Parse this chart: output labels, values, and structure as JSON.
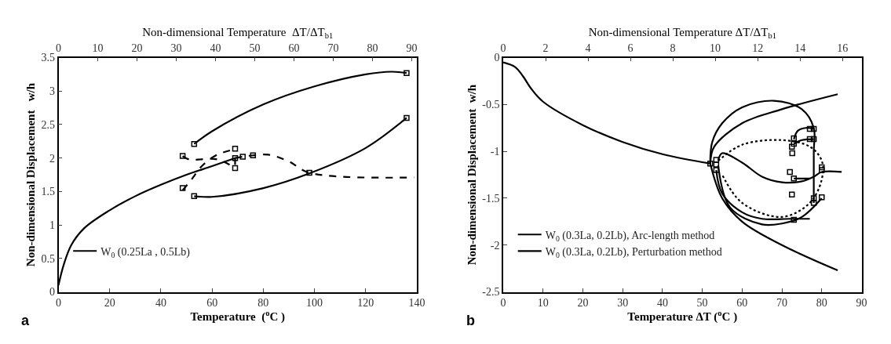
{
  "chart_data": [
    {
      "type": "line",
      "xlabel": "Temperature  ($^{o}$C )",
      "ylabel": "Non-dimensional Displacement   w/h",
      "x2label": "Non-dimensional Temperature  ΔT/ΔT$_{b1}$",
      "xlim": [
        0,
        140
      ],
      "xticks": [
        0,
        20,
        40,
        60,
        80,
        100,
        120,
        140
      ],
      "ylim": [
        0,
        3.5
      ],
      "yticks": [
        0,
        0.5,
        1,
        1.5,
        2,
        2.5,
        3,
        3.5
      ],
      "x2lim": [
        0,
        91.3
      ],
      "x2ticks": [
        0,
        10,
        20,
        30,
        40,
        50,
        60,
        70,
        80,
        90
      ],
      "legend": "bottom left",
      "annotations": [
        "a"
      ],
      "series": [
        {
          "name": "W$_{0}$ (0.25La , 0.5Lb)",
          "color": "#000000",
          "line_style": "solid",
          "x": [
            0,
            2,
            5,
            10,
            20,
            30,
            40,
            50,
            60,
            69
          ],
          "values": [
            0.1,
            0.4,
            0.7,
            0.95,
            1.22,
            1.43,
            1.6,
            1.75,
            1.88,
            2.0
          ]
        },
        {
          "color": "#000000",
          "line_style": "solid",
          "x": [
            53,
            60,
            80,
            100,
            120,
            130,
            136
          ],
          "values": [
            2.21,
            2.4,
            2.8,
            3.07,
            3.25,
            3.29,
            3.27
          ]
        },
        {
          "color": "#000000",
          "line_style": "solid",
          "x": [
            53,
            60,
            80,
            98,
            120,
            136
          ],
          "values": [
            1.43,
            1.42,
            1.55,
            1.77,
            2.15,
            2.6
          ]
        },
        {
          "color": "#000000",
          "line_style": "dashed",
          "x": [
            48.5,
            52,
            56,
            62,
            69
          ],
          "values": [
            1.52,
            1.68,
            1.88,
            2.05,
            2.13
          ]
        },
        {
          "color": "#000000",
          "line_style": "dashed",
          "x": [
            48.5,
            51,
            62,
            69
          ],
          "values": [
            2.03,
            1.98,
            1.98,
            1.85
          ]
        },
        {
          "color": "#000000",
          "line_style": "dashed",
          "x": [
            69,
            72,
            76,
            82,
            90,
            98,
            139
          ],
          "values": [
            2.0,
            2.02,
            2.04,
            2.05,
            1.95,
            1.78,
            1.71
          ]
        },
        {
          "color": "#000000",
          "line_style": "dashed",
          "x": [
            69,
            69
          ],
          "values": [
            1.9,
            2.1
          ]
        },
        {
          "type": "scatter",
          "marker": "square",
          "color": "#000000",
          "x": [
            136,
            136,
            53,
            48.5,
            69,
            69,
            72,
            76,
            69,
            48.5,
            53,
            98
          ],
          "values": [
            3.27,
            2.6,
            2.21,
            2.03,
            2.14,
            2.0,
            2.02,
            2.04,
            1.85,
            1.55,
            1.43,
            1.78
          ]
        }
      ]
    },
    {
      "type": "line",
      "xlabel": "Temperature ΔT ($^{o}$C )",
      "ylabel": "Non-dimensional Displacement  w/h",
      "x2label": "Non-dimensional Temperature ΔT/ΔT$_{b1}$",
      "xlim": [
        0,
        90
      ],
      "xticks": [
        0,
        10,
        20,
        30,
        40,
        50,
        60,
        70,
        80,
        90
      ],
      "ylim": [
        -2.5,
        0
      ],
      "yticks": [
        -2.5,
        -2,
        -1.5,
        -1,
        -0.5,
        0
      ],
      "x2lim": [
        0,
        16.9
      ],
      "x2ticks": [
        0,
        2,
        4,
        6,
        8,
        10,
        12,
        14,
        16
      ],
      "legend": "bottom left",
      "annotations": [
        "b"
      ],
      "series": [
        {
          "name": "W$_{0}$ (0.3La, 0.2Lb), Arc-length method",
          "color": "#000000",
          "line_style": "solid",
          "x": [
            0,
            3,
            5,
            7,
            10,
            20,
            30,
            40,
            52
          ],
          "values": [
            -0.05,
            -0.1,
            -0.2,
            -0.33,
            -0.47,
            -0.72,
            -0.9,
            -1.03,
            -1.13
          ]
        },
        {
          "name": "W$_{0}$ (0.3La, 0.2Lb), Perturbation method",
          "color": "#000000",
          "line_style": "solid",
          "x": [
            52,
            53,
            60,
            70,
            84
          ],
          "values": [
            -1.13,
            -0.95,
            -0.7,
            -0.55,
            -0.39
          ]
        },
        {
          "color": "#000000",
          "line_style": "solid",
          "x": [
            52,
            52.5,
            55,
            60,
            68,
            75,
            78,
            78,
            78
          ],
          "values": [
            -1.13,
            -0.9,
            -0.7,
            -0.53,
            -0.46,
            -0.55,
            -0.75,
            -1.0,
            -1.55
          ]
        },
        {
          "color": "#000000",
          "line_style": "solid",
          "x": [
            52,
            55,
            60,
            70,
            84
          ],
          "values": [
            -1.13,
            -1.5,
            -1.75,
            -2.0,
            -2.27
          ]
        },
        {
          "color": "#000000",
          "line_style": "solid",
          "x": [
            53.5,
            55,
            60,
            65,
            72,
            77
          ],
          "values": [
            -1.2,
            -1.45,
            -1.65,
            -1.72,
            -1.72,
            -1.72
          ]
        },
        {
          "color": "#000000",
          "line_style": "solid",
          "x": [
            54,
            57,
            65,
            70,
            75,
            80
          ],
          "values": [
            -1.15,
            -1.6,
            -1.78,
            -1.77,
            -1.7,
            -1.5
          ]
        },
        {
          "color": "#000000",
          "line_style": "solid",
          "x": [
            54,
            55,
            60,
            65,
            70,
            75,
            78,
            80,
            85
          ],
          "values": [
            -1.1,
            -1.02,
            -1.12,
            -1.27,
            -1.33,
            -1.32,
            -1.27,
            -1.22,
            -1.22
          ]
        },
        {
          "color": "#000000",
          "line_style": "solid",
          "x": [
            73,
            74,
            76,
            78
          ],
          "values": [
            -0.87,
            -0.78,
            -0.75,
            -0.76
          ]
        },
        {
          "color": "#000000",
          "line_style": "solid",
          "x": [
            73,
            75,
            78
          ],
          "values": [
            -0.92,
            -0.88,
            -0.87
          ]
        },
        {
          "color": "#000000",
          "line_style": "solid",
          "x": [
            73,
            77
          ],
          "values": [
            -1.29,
            -1.29
          ]
        },
        {
          "color": "#000000",
          "line_style": "dotted",
          "x": [
            54,
            60,
            70,
            77,
            80,
            80,
            77,
            70,
            60,
            55
          ],
          "values": [
            -1.1,
            -0.93,
            -0.88,
            -0.95,
            -1.1,
            -1.3,
            -1.55,
            -1.7,
            -1.55,
            -1.25
          ]
        },
        {
          "type": "scatter",
          "marker": "square",
          "color": "#000000",
          "x": [
            52,
            53.5,
            53.5,
            53.5,
            72,
            73,
            72.5,
            72.6,
            73,
            73,
            77,
            78,
            77,
            78,
            80,
            80,
            72.5,
            78,
            78,
            80,
            73
          ],
          "values": [
            -1.13,
            -1.09,
            -1.14,
            -1.2,
            -1.22,
            -1.29,
            -0.95,
            -1.02,
            -0.86,
            -0.92,
            -0.76,
            -0.76,
            -0.87,
            -0.87,
            -1.17,
            -1.2,
            -1.46,
            -1.5,
            -1.55,
            -1.49,
            -1.73
          ]
        }
      ]
    }
  ]
}
